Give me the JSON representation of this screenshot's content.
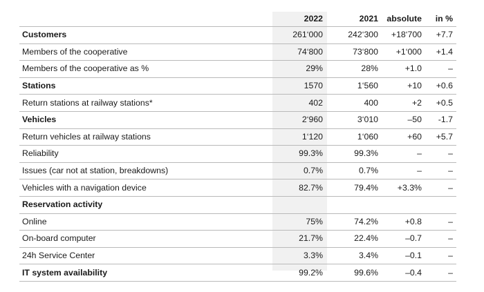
{
  "header": {
    "y2022": "2022",
    "y2021": "2021",
    "absolute": "absolute",
    "pct": "in %"
  },
  "rows": [
    {
      "label": "Customers",
      "v2022": "261‘000",
      "v2021": "242‘300",
      "abs": "+18‘700",
      "pct": "+7.7",
      "bold": true
    },
    {
      "label": "Members of the cooperative",
      "v2022": "74‘800",
      "v2021": "73‘800",
      "abs": "+1‘000",
      "pct": "+1.4",
      "bold": false
    },
    {
      "label": "Members of the cooperative as %",
      "v2022": "29%",
      "v2021": "28%",
      "abs": "+1.0",
      "pct": "–",
      "bold": false
    },
    {
      "label": "Stations",
      "v2022": "1570",
      "v2021": "1‘560",
      "abs": "+10",
      "pct": "+0.6",
      "bold": true
    },
    {
      "label": "Return stations at railway stations*",
      "v2022": "402",
      "v2021": "400",
      "abs": "+2",
      "pct": "+0.5",
      "bold": false
    },
    {
      "label": "Vehicles",
      "v2022": "2‘960",
      "v2021": "3‘010",
      "abs": "–50",
      "pct": "-1.7",
      "bold": true
    },
    {
      "label": "Return vehicles at railway stations",
      "v2022": "1‘120",
      "v2021": "1‘060",
      "abs": "+60",
      "pct": "+5.7",
      "bold": false
    },
    {
      "label": "Reliability",
      "v2022": "99.3%",
      "v2021": "99.3%",
      "abs": "–",
      "pct": "–",
      "bold": false
    },
    {
      "label": "Issues (car not at station, breakdowns)",
      "v2022": "0.7%",
      "v2021": "0.7%",
      "abs": "–",
      "pct": "–",
      "bold": false
    },
    {
      "label": "Vehicles with a navigation device",
      "v2022": "82.7%",
      "v2021": "79.4%",
      "abs": "+3.3%",
      "pct": "–",
      "bold": false
    },
    {
      "label": "Reservation activity",
      "v2022": "",
      "v2021": "",
      "abs": "",
      "pct": "",
      "bold": true
    },
    {
      "label": "Online",
      "v2022": "75%",
      "v2021": "74.2%",
      "abs": "+0.8",
      "pct": "–",
      "bold": false
    },
    {
      "label": "On-board computer",
      "v2022": "21.7%",
      "v2021": "22.4%",
      "abs": "–0.7",
      "pct": "–",
      "bold": false
    },
    {
      "label": "24h Service Center",
      "v2022": "3.3%",
      "v2021": "3.4%",
      "abs": "–0.1",
      "pct": "–",
      "bold": false
    },
    {
      "label": "IT system availability",
      "v2022": "99.2%",
      "v2021": "99.6%",
      "abs": "–0.4",
      "pct": "–",
      "bold": true
    }
  ]
}
